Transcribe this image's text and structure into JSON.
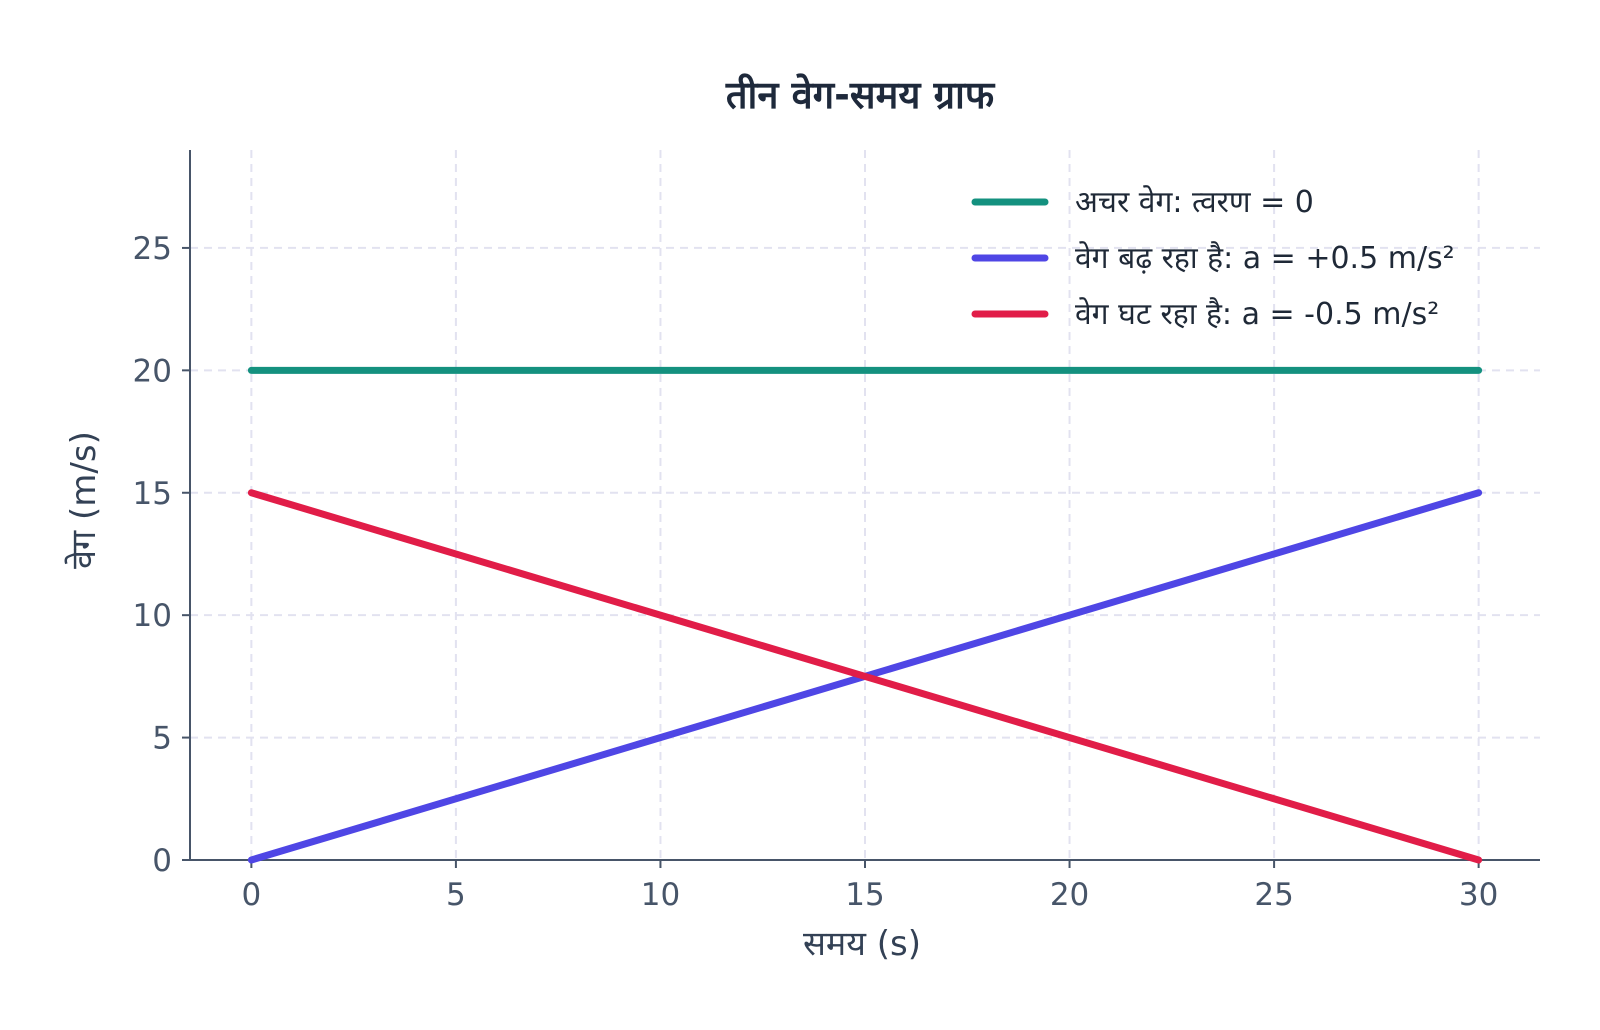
{
  "chart_data": {
    "type": "line",
    "title": "तीन वेग-समय ग्राफ",
    "xlabel": "समय (s)",
    "ylabel": "वेग (m/s)",
    "xlim": [
      -1.5,
      31.5
    ],
    "ylim": [
      0,
      29
    ],
    "xticks": [
      0,
      5,
      10,
      15,
      20,
      25,
      30
    ],
    "yticks": [
      0,
      5,
      10,
      15,
      20,
      25
    ],
    "grid": true,
    "legend_position": "top-right",
    "series": [
      {
        "name": "अचर वेग: त्वरण = 0",
        "color": "#14917f",
        "x": [
          0,
          30
        ],
        "y": [
          20,
          20
        ]
      },
      {
        "name": "वेग बढ़ रहा है: a = +0.5 m/s²",
        "color": "#4f46e5",
        "x": [
          0,
          30
        ],
        "y": [
          0,
          15
        ]
      },
      {
        "name": "वेग घट रहा है: a = -0.5 m/s²",
        "color": "#e11d48",
        "x": [
          0,
          30
        ],
        "y": [
          15,
          0
        ]
      }
    ]
  }
}
